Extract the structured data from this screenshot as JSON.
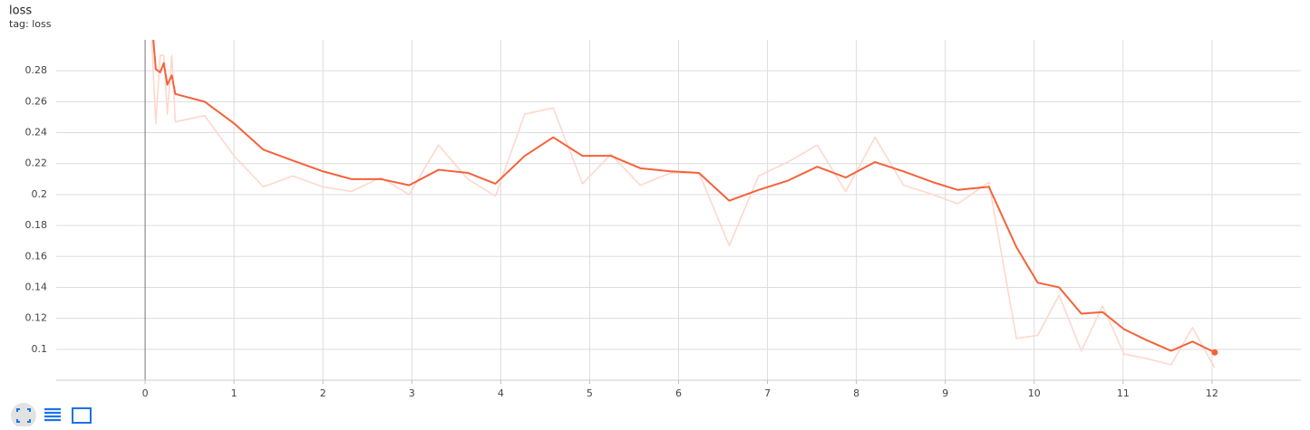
{
  "chart_data": {
    "type": "line",
    "title": "loss",
    "subtitle": "tag: loss",
    "x": [
      0.05,
      0.12,
      0.17,
      0.21,
      0.25,
      0.3,
      0.34,
      0.67,
      1.0,
      1.33,
      1.66,
      2.0,
      2.32,
      2.65,
      2.97,
      3.3,
      3.63,
      3.94,
      4.27,
      4.59,
      4.92,
      5.24,
      5.57,
      5.91,
      6.23,
      6.57,
      6.9,
      7.23,
      7.56,
      7.88,
      8.21,
      8.53,
      8.86,
      9.14,
      9.49,
      9.8,
      10.04,
      10.28,
      10.53,
      10.77,
      11.01,
      11.26,
      11.54,
      11.78,
      12.03
    ],
    "series": [
      {
        "color": "#fdd8cd",
        "values": [
          0.33,
          0.246,
          0.29,
          0.29,
          0.252,
          0.29,
          0.247,
          0.251,
          0.225,
          0.205,
          0.212,
          0.205,
          0.202,
          0.211,
          0.2,
          0.232,
          0.21,
          0.199,
          0.252,
          0.256,
          0.207,
          0.226,
          0.206,
          0.214,
          0.214,
          0.167,
          0.212,
          0.221,
          0.232,
          0.202,
          0.237,
          0.206,
          0.2,
          0.194,
          0.208,
          0.107,
          0.109,
          0.135,
          0.099,
          0.128,
          0.097,
          0.094,
          0.09,
          0.114,
          0.088
        ]
      },
      {
        "color": "#f4623a",
        "values": [
          0.33,
          0.281,
          0.279,
          0.285,
          0.271,
          0.277,
          0.265,
          0.26,
          0.246,
          0.229,
          0.222,
          0.215,
          0.21,
          0.21,
          0.206,
          0.216,
          0.214,
          0.207,
          0.225,
          0.237,
          0.225,
          0.225,
          0.217,
          0.215,
          0.214,
          0.196,
          0.203,
          0.209,
          0.218,
          0.211,
          0.221,
          0.215,
          0.208,
          0.203,
          0.205,
          0.166,
          0.143,
          0.14,
          0.123,
          0.124,
          0.113,
          0.106,
          0.099,
          0.105,
          0.098
        ]
      }
    ],
    "xlim": [
      -1,
      13
    ],
    "xticks": [
      0,
      1,
      2,
      3,
      4,
      5,
      6,
      7,
      8,
      9,
      10,
      11,
      12
    ],
    "ylim": [
      0.08,
      0.3
    ],
    "yticks": [
      0.1,
      0.12,
      0.14,
      0.16,
      0.18,
      0.2,
      0.22,
      0.24,
      0.26,
      0.28
    ],
    "grid": true
  }
}
